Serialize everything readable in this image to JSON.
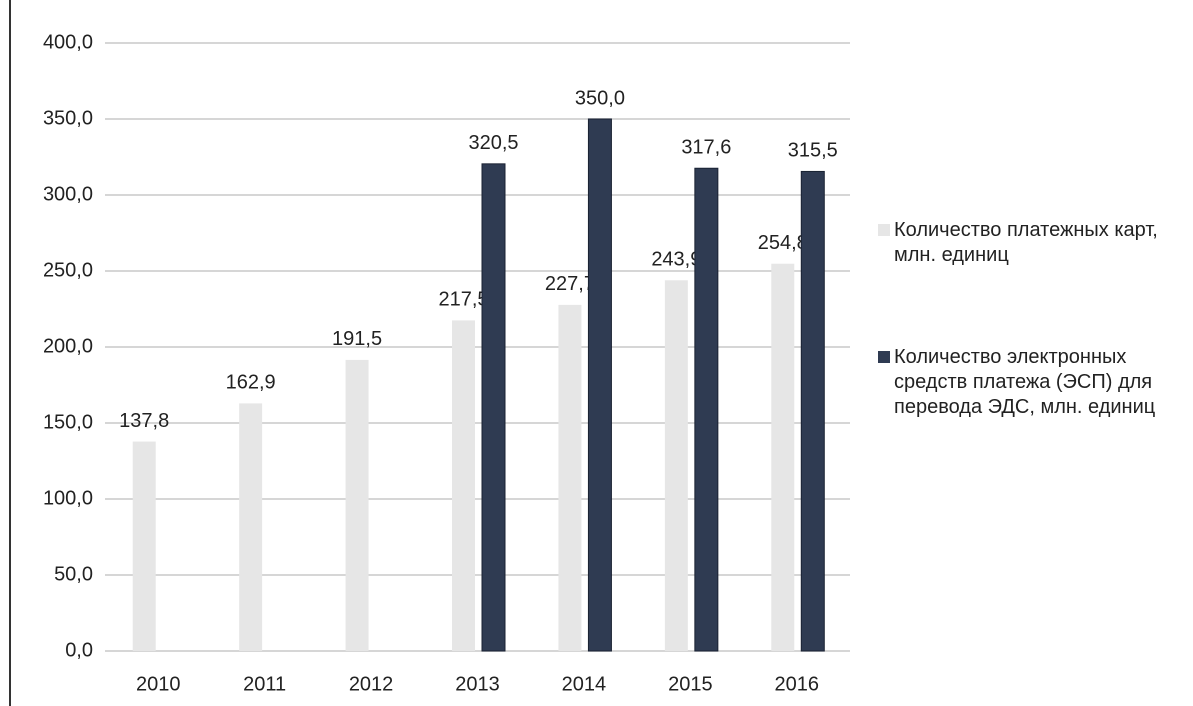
{
  "chart_data": {
    "type": "bar",
    "categories": [
      "2010",
      "2011",
      "2012",
      "2013",
      "2014",
      "2015",
      "2016"
    ],
    "series": [
      {
        "name": "Количество платежных карт, млн. единиц",
        "color": "#e6e6e6",
        "values": [
          137.8,
          162.9,
          191.5,
          217.5,
          227.7,
          243.9,
          254.8
        ],
        "value_labels": [
          "137,8",
          "162,9",
          "191,5",
          "217,5",
          "227,7",
          "243,9",
          "254,8"
        ]
      },
      {
        "name": "Количество электронных средств платежа (ЭСП) для перевода ЭДС, млн. единиц",
        "color": "#2f3b52",
        "values": [
          null,
          null,
          null,
          320.5,
          350.0,
          317.6,
          315.5
        ],
        "value_labels": [
          null,
          null,
          null,
          "320,5",
          "350,0",
          "317,6",
          "315,5"
        ]
      }
    ],
    "ylim": [
      0,
      400
    ],
    "yticks": [
      {
        "value": 0,
        "label": "0,0"
      },
      {
        "value": 50,
        "label": "50,0"
      },
      {
        "value": 100,
        "label": "100,0"
      },
      {
        "value": 150,
        "label": "150,0"
      },
      {
        "value": 200,
        "label": "200,0"
      },
      {
        "value": 250,
        "label": "250,0"
      },
      {
        "value": 300,
        "label": "300,0"
      },
      {
        "value": 350,
        "label": "350,0"
      },
      {
        "value": 400,
        "label": "400,0"
      }
    ],
    "grid": true,
    "legend": "right"
  }
}
